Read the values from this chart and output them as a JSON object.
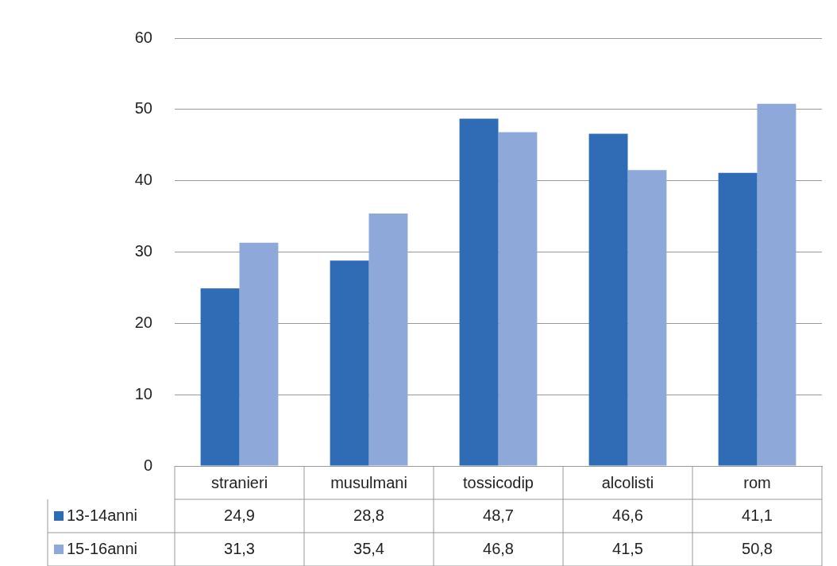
{
  "chart_data": {
    "type": "bar",
    "categories": [
      "stranieri",
      "musulmani",
      "tossicodip",
      "alcolisti",
      "rom"
    ],
    "series": [
      {
        "name": "13-14anni",
        "color": "#2f6cb5",
        "values": [
          24.9,
          28.8,
          48.7,
          46.6,
          41.1
        ],
        "value_labels": [
          "24,9",
          "28,8",
          "48,7",
          "46,6",
          "41,1"
        ]
      },
      {
        "name": "15-16anni",
        "color": "#8ea8d9",
        "values": [
          31.3,
          35.4,
          46.8,
          41.5,
          50.8
        ],
        "value_labels": [
          "31,3",
          "35,4",
          "46,8",
          "41,5",
          "50,8"
        ]
      }
    ],
    "ylim": [
      0,
      60
    ],
    "yticks": [
      0,
      10,
      20,
      30,
      40,
      50,
      60
    ],
    "grid": "y",
    "legend": "bottom left"
  }
}
